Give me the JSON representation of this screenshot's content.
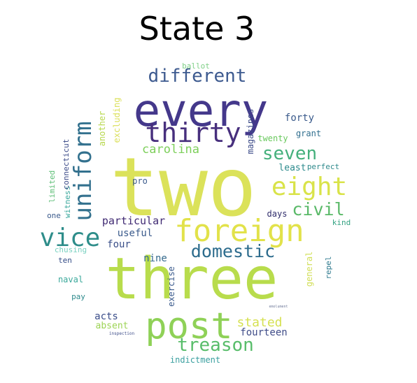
{
  "title": "State 3",
  "words": [
    {
      "text": "two",
      "color": "#dbe25a",
      "rotate": false
    },
    {
      "text": "three",
      "color": "#b8dc4c",
      "rotate": false
    },
    {
      "text": "every",
      "color": "#44388b",
      "rotate": false
    },
    {
      "text": "foreign",
      "color": "#e2e24a",
      "rotate": false
    },
    {
      "text": "post",
      "color": "#8fd157",
      "rotate": false
    },
    {
      "text": "thirty",
      "color": "#472f7d",
      "rotate": false
    },
    {
      "text": "different",
      "color": "#3d5a8f",
      "rotate": false
    },
    {
      "text": "uniform",
      "color": "#33718e",
      "rotate": true
    },
    {
      "text": "vice",
      "color": "#2e8d8a",
      "rotate": false
    },
    {
      "text": "eight",
      "color": "#d9e349",
      "rotate": false
    },
    {
      "text": "seven",
      "color": "#45b07c",
      "rotate": false
    },
    {
      "text": "domestic",
      "color": "#2d6c8d",
      "rotate": false
    },
    {
      "text": "civil",
      "color": "#5ab968",
      "rotate": false
    },
    {
      "text": "treason",
      "color": "#58bd6a",
      "rotate": false
    },
    {
      "text": "carolina",
      "color": "#7dcf5a",
      "rotate": false
    },
    {
      "text": "stated",
      "color": "#d6e152",
      "rotate": false
    },
    {
      "text": "fourteen",
      "color": "#3f4c88",
      "rotate": false
    },
    {
      "text": "particular",
      "color": "#402a73",
      "rotate": false
    },
    {
      "text": "useful",
      "color": "#3b5b8c",
      "rotate": false
    },
    {
      "text": "nine",
      "color": "#356a8d",
      "rotate": false
    },
    {
      "text": "four",
      "color": "#3a4f89",
      "rotate": false
    },
    {
      "text": "acts",
      "color": "#3a4d89",
      "rotate": false
    },
    {
      "text": "days",
      "color": "#2f2c6b",
      "rotate": false
    },
    {
      "text": "kind",
      "color": "#35a383",
      "rotate": false
    },
    {
      "text": "absent",
      "color": "#9dd455",
      "rotate": false
    },
    {
      "text": "forty",
      "color": "#3b5b8c",
      "rotate": false
    },
    {
      "text": "grant",
      "color": "#2f6e8e",
      "rotate": false
    },
    {
      "text": "twenty",
      "color": "#6ac95e",
      "rotate": false
    },
    {
      "text": "least",
      "color": "#2b8a8c",
      "rotate": false
    },
    {
      "text": "perfect",
      "color": "#2f8a8c",
      "rotate": false
    },
    {
      "text": "magazines",
      "color": "#3d4c89",
      "rotate": true
    },
    {
      "text": "excluding",
      "color": "#dbe05a",
      "rotate": true
    },
    {
      "text": "another",
      "color": "#b8d84e",
      "rotate": true
    },
    {
      "text": "witness",
      "color": "#3ba89d",
      "rotate": true
    },
    {
      "text": "connecticut",
      "color": "#3d4c89",
      "rotate": true
    },
    {
      "text": "limited",
      "color": "#5fbf78",
      "rotate": true
    },
    {
      "text": "pro",
      "color": "#3b5b8c",
      "rotate": false
    },
    {
      "text": "one",
      "color": "#3b5b8c",
      "rotate": false
    },
    {
      "text": "chusing",
      "color": "#79d1c0",
      "rotate": false
    },
    {
      "text": "ten",
      "color": "#334b86",
      "rotate": false
    },
    {
      "text": "naval",
      "color": "#3aa89a",
      "rotate": false
    },
    {
      "text": "pay",
      "color": "#2e8a8c",
      "rotate": false
    },
    {
      "text": "exercise",
      "color": "#3b5b8c",
      "rotate": true
    },
    {
      "text": "general",
      "color": "#d1df57",
      "rotate": true
    },
    {
      "text": "repel",
      "color": "#2f7a8e",
      "rotate": true
    },
    {
      "text": "ballot",
      "color": "#7ecf86",
      "rotate": false
    },
    {
      "text": "indictment",
      "color": "#3ba0a0",
      "rotate": false
    },
    {
      "text": "inspection",
      "color": "#3d4c89",
      "rotate": false
    },
    {
      "text": "emolument",
      "color": "#6f7a9a",
      "rotate": false
    }
  ]
}
